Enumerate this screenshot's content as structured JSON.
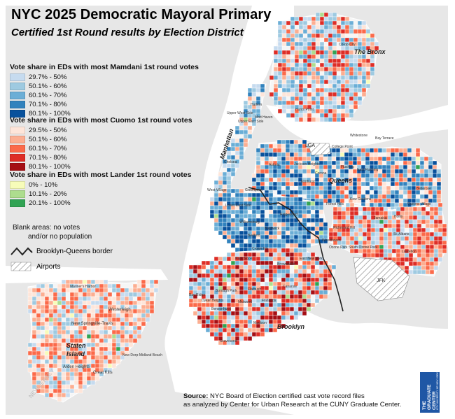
{
  "title": "NYC 2025 Democratic Mayoral Primary",
  "subtitle": "Certified 1st Round results by Election District",
  "legend": {
    "mamdani": {
      "heading": "Vote share in EDs with most Mamdani 1st round votes",
      "classes": [
        {
          "label": "29.7% - 50%",
          "color": "#c6dbef"
        },
        {
          "label": "50.1% - 60%",
          "color": "#9ecae1"
        },
        {
          "label": "60.1% - 70%",
          "color": "#6baed6"
        },
        {
          "label": "70.1% - 80%",
          "color": "#3182bd"
        },
        {
          "label": "80.1% - 100%",
          "color": "#08519c"
        }
      ]
    },
    "cuomo": {
      "heading": "Vote share in EDs with most Cuomo 1st round votes",
      "classes": [
        {
          "label": "29.5% - 50%",
          "color": "#fee5d9"
        },
        {
          "label": "50.1% - 60%",
          "color": "#fcae91"
        },
        {
          "label": "60.1% - 70%",
          "color": "#fb6a4a"
        },
        {
          "label": "70.1% - 80%",
          "color": "#de2d26"
        },
        {
          "label": "80.1% - 100%",
          "color": "#a50f15"
        }
      ]
    },
    "lander": {
      "heading": "Vote share in EDs with most Lander 1st round votes",
      "classes": [
        {
          "label": "0% - 10%",
          "color": "#f7fcb9"
        },
        {
          "label": "10.1% - 20%",
          "color": "#addd8e"
        },
        {
          "label": "20.1% - 100%",
          "color": "#31a354"
        }
      ]
    },
    "blank_note_line1": "Blank areas: no votes",
    "blank_note_line2": "and/or no population",
    "border_label": "Brooklyn-Queens border",
    "airports_label": "Airports"
  },
  "map": {
    "boroughs": {
      "bronx": "The Bronx",
      "manhattan": "Manhattan",
      "queens": "Queens",
      "brooklyn": "Brooklyn",
      "staten_island_1": "Staten",
      "staten_island_2": "Island",
      "new_jersey": "NEW JERSEY"
    },
    "neighborhoods": [
      "Co-op City",
      "Hunts Point",
      "Mott Haven",
      "Harlem",
      "Upper West Side",
      "Upper East Side",
      "Chelsea",
      "West Village",
      "Lower East Side",
      "Astoria",
      "LGA",
      "College Point",
      "Whitestone",
      "Bay Terrace",
      "Flushing",
      "East Flushing",
      "Jackson Heights",
      "Elmhurst",
      "Corona",
      "Bellerose",
      "Forest Hills",
      "Kew Gardens",
      "Queens Village",
      "Hollis",
      "Jamaica",
      "St. Albans",
      "Laurelton",
      "Ridgewood",
      "Bushwick",
      "Greenpoint",
      "Williamsburg",
      "Richmond Hill",
      "Woodhaven",
      "Ozone Park",
      "South Ozone Park",
      "East New York",
      "Crown Hts",
      "Bedford",
      "Park Slope",
      "Brownsville",
      "Canarsie",
      "Flatbush",
      "Midwood",
      "Borough Park",
      "Bay Ridge",
      "Dyker Heights",
      "Bensonhurst",
      "Gravesend",
      "Flatlands",
      "Madison",
      "JFK",
      "Westerleigh",
      "New Springville-Travis",
      "Great Kills",
      "Arden Heights",
      "New Dorp-Midland Beach",
      "Mariner's Harbor"
    ]
  },
  "source": {
    "label": "Source:",
    "line1": "NYC Board of Election certified cast vote record files",
    "line2": "as analyzed by Center for Urban Research at the CUNY Graduate Center."
  },
  "logo": {
    "line1": "THE",
    "line2": "GRADUATE",
    "line3": "CENTER",
    "small": "CITY UNIVERSITY OF NEW YORK"
  }
}
